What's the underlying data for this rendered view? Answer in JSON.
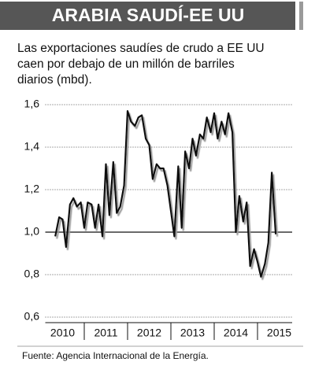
{
  "chart_data": {
    "type": "line",
    "title": "ARABIA SAUDÍ-EE UU",
    "subtitle": [
      "Las exportaciones saudíes de crudo a EE UU",
      "caen por debajo de un millón de barriles",
      "diarios (mbd)."
    ],
    "source": "Fuente: Agencia Internacional de la Energía.",
    "x": [
      2010.33,
      2010.42,
      2010.5,
      2010.58,
      2010.67,
      2010.75,
      2010.83,
      2010.92,
      2011.0,
      2011.08,
      2011.17,
      2011.25,
      2011.33,
      2011.42,
      2011.5,
      2011.58,
      2011.67,
      2011.75,
      2011.83,
      2011.92,
      2012.0,
      2012.08,
      2012.17,
      2012.25,
      2012.33,
      2012.42,
      2012.5,
      2012.58,
      2012.67,
      2012.75,
      2012.83,
      2012.92,
      2013.0,
      2013.08,
      2013.17,
      2013.25,
      2013.33,
      2013.42,
      2013.5,
      2013.58,
      2013.67,
      2013.75,
      2013.83,
      2013.92,
      2014.0,
      2014.08,
      2014.17,
      2014.25,
      2014.33,
      2014.42,
      2014.5,
      2014.58,
      2014.67,
      2014.75,
      2014.83,
      2014.92,
      2015.0,
      2015.08,
      2015.17,
      2015.25,
      2015.33,
      2015.42
    ],
    "series": [
      {
        "color": "#111111",
        "values": [
          0.98,
          1.07,
          1.06,
          0.93,
          1.13,
          1.16,
          1.12,
          1.14,
          1.02,
          1.14,
          1.13,
          1.02,
          1.13,
          0.98,
          1.32,
          1.08,
          1.33,
          1.09,
          1.12,
          1.22,
          1.57,
          1.52,
          1.5,
          1.54,
          1.55,
          1.44,
          1.41,
          1.25,
          1.32,
          1.3,
          1.3,
          1.22,
          1.1,
          0.98,
          1.31,
          1.02,
          1.38,
          1.3,
          1.44,
          1.36,
          1.46,
          1.44,
          1.54,
          1.47,
          1.56,
          1.44,
          1.52,
          1.46,
          1.56,
          1.47,
          1.0,
          1.17,
          1.05,
          1.14,
          0.84,
          0.92,
          0.86,
          0.79,
          0.85,
          0.95,
          1.28,
          0.99
        ]
      }
    ],
    "xlim": [
      2010.1,
      2015.8
    ],
    "xticks": [
      {
        "value": 2010.5,
        "label": "2010"
      },
      {
        "value": 2011.5,
        "label": "2011"
      },
      {
        "value": 2012.5,
        "label": "2012"
      },
      {
        "value": 2013.5,
        "label": "2013"
      },
      {
        "value": 2014.5,
        "label": "2014"
      },
      {
        "value": 2015.5,
        "label": "2015"
      }
    ],
    "ylim": [
      0.6,
      1.6
    ],
    "yticks": [
      {
        "value": 0.6,
        "label": "0,6"
      },
      {
        "value": 0.8,
        "label": "0,8"
      },
      {
        "value": 1.0,
        "label": "1,0"
      },
      {
        "value": 1.2,
        "label": "1,2"
      },
      {
        "value": 1.4,
        "label": "1,4"
      },
      {
        "value": 1.6,
        "label": "1,6"
      }
    ],
    "grid": true,
    "reference_line": 1.0
  }
}
